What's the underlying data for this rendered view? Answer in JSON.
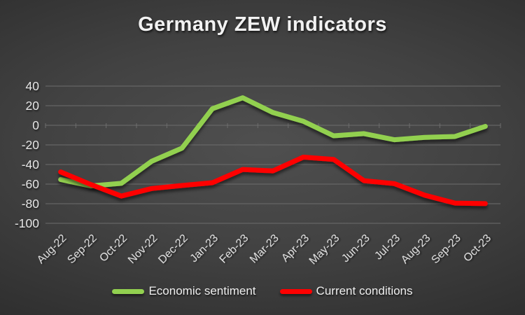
{
  "chart_data": {
    "type": "line",
    "title": "Germany ZEW indicators",
    "categories": [
      "Aug-22",
      "Sep-22",
      "Oct-22",
      "Nov-22",
      "Dec-22",
      "Jan-23",
      "Feb-23",
      "Mar-23",
      "Apr-23",
      "May-23",
      "Jun-23",
      "Jul-23",
      "Aug-23",
      "Sep-23",
      "Oct-23"
    ],
    "series": [
      {
        "name": "Economic sentiment",
        "color": "#92d050",
        "values": [
          -55.3,
          -61.9,
          -59.2,
          -36.7,
          -23.3,
          16.9,
          28.1,
          13.0,
          4.1,
          -10.7,
          -8.5,
          -14.7,
          -12.3,
          -11.4,
          -1.1
        ]
      },
      {
        "name": "Current conditions",
        "color": "#ff0000",
        "values": [
          -47.6,
          -60.5,
          -72.2,
          -64.5,
          -61.4,
          -58.6,
          -45.1,
          -46.5,
          -32.5,
          -34.8,
          -56.5,
          -59.5,
          -71.3,
          -79.4,
          -79.9
        ]
      }
    ],
    "xlabel": "",
    "ylabel": "",
    "ylim": [
      -100,
      40
    ],
    "yticks": [
      40,
      20,
      0,
      -20,
      -40,
      -60,
      -80,
      -100
    ],
    "grid": true,
    "legend_position": "bottom",
    "x_label_rotation_deg": 45
  },
  "colors": {
    "background_center": "#4f4f4f",
    "background_edge": "#212121",
    "gridline": "#6d6d6d",
    "axis_labels": "#e6e6e6",
    "title_text": "#f2f2f2",
    "series_green": "#92d050",
    "series_red": "#ff0000"
  }
}
